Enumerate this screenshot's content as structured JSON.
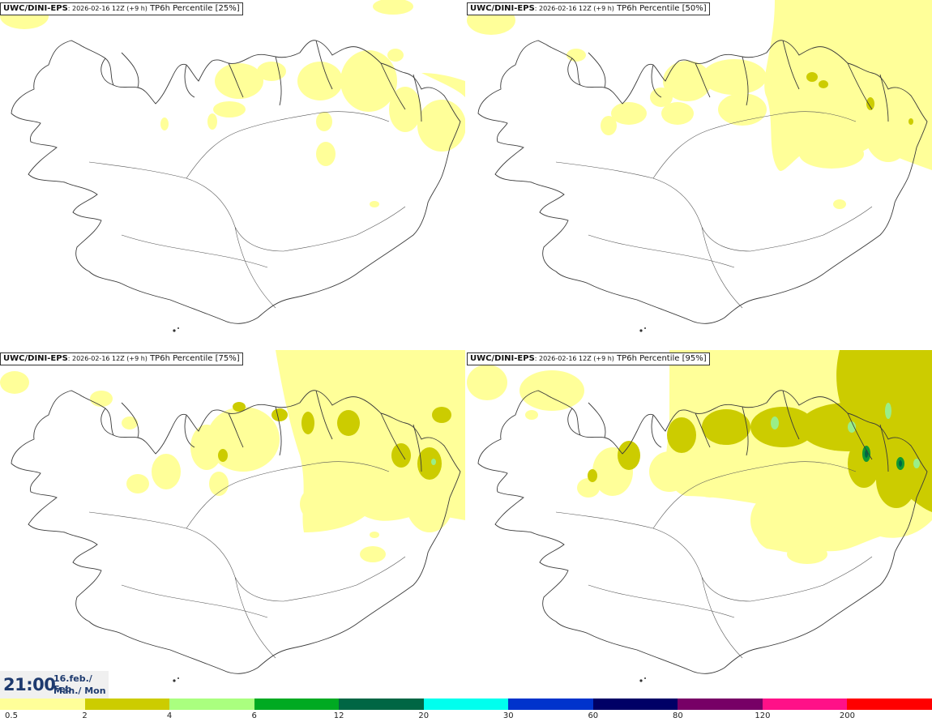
{
  "panels": [
    {
      "model": "UWC/DINI-EPS",
      "run": ": 2026-02-16 12Z (+9 h)",
      "product": " TP6h Percentile [25%]"
    },
    {
      "model": "UWC/DINI-EPS",
      "run": ": 2026-02-16 12Z (+9 h)",
      "product": " TP6h Percentile [50%]"
    },
    {
      "model": "UWC/DINI-EPS",
      "run": ": 2026-02-16 12Z (+9 h)",
      "product": " TP6h Percentile [75%]"
    },
    {
      "model": "UWC/DINI-EPS",
      "run": ": 2026-02-16 12Z (+9 h)",
      "product": " TP6h Percentile [95%]"
    }
  ],
  "valid_time": {
    "time": "21:00",
    "date_line1": "16.feb./ Feb",
    "date_line2": "Mán./ Mon"
  },
  "legend": {
    "ticks": [
      "0.5",
      "2",
      "4",
      "6",
      "12",
      "20",
      "30",
      "60",
      "80",
      "120",
      "200"
    ],
    "colors": [
      "#ffff99",
      "#cccc00",
      "#aaff7f",
      "#00aa22",
      "#006644",
      "#00ffee",
      "#0033cc",
      "#000066",
      "#770066",
      "#ff1188",
      "#ff0000"
    ]
  },
  "map_colors": {
    "light": "#ffff99",
    "mid": "#cccc00",
    "green_light": "#99ee88",
    "green": "#119933"
  }
}
